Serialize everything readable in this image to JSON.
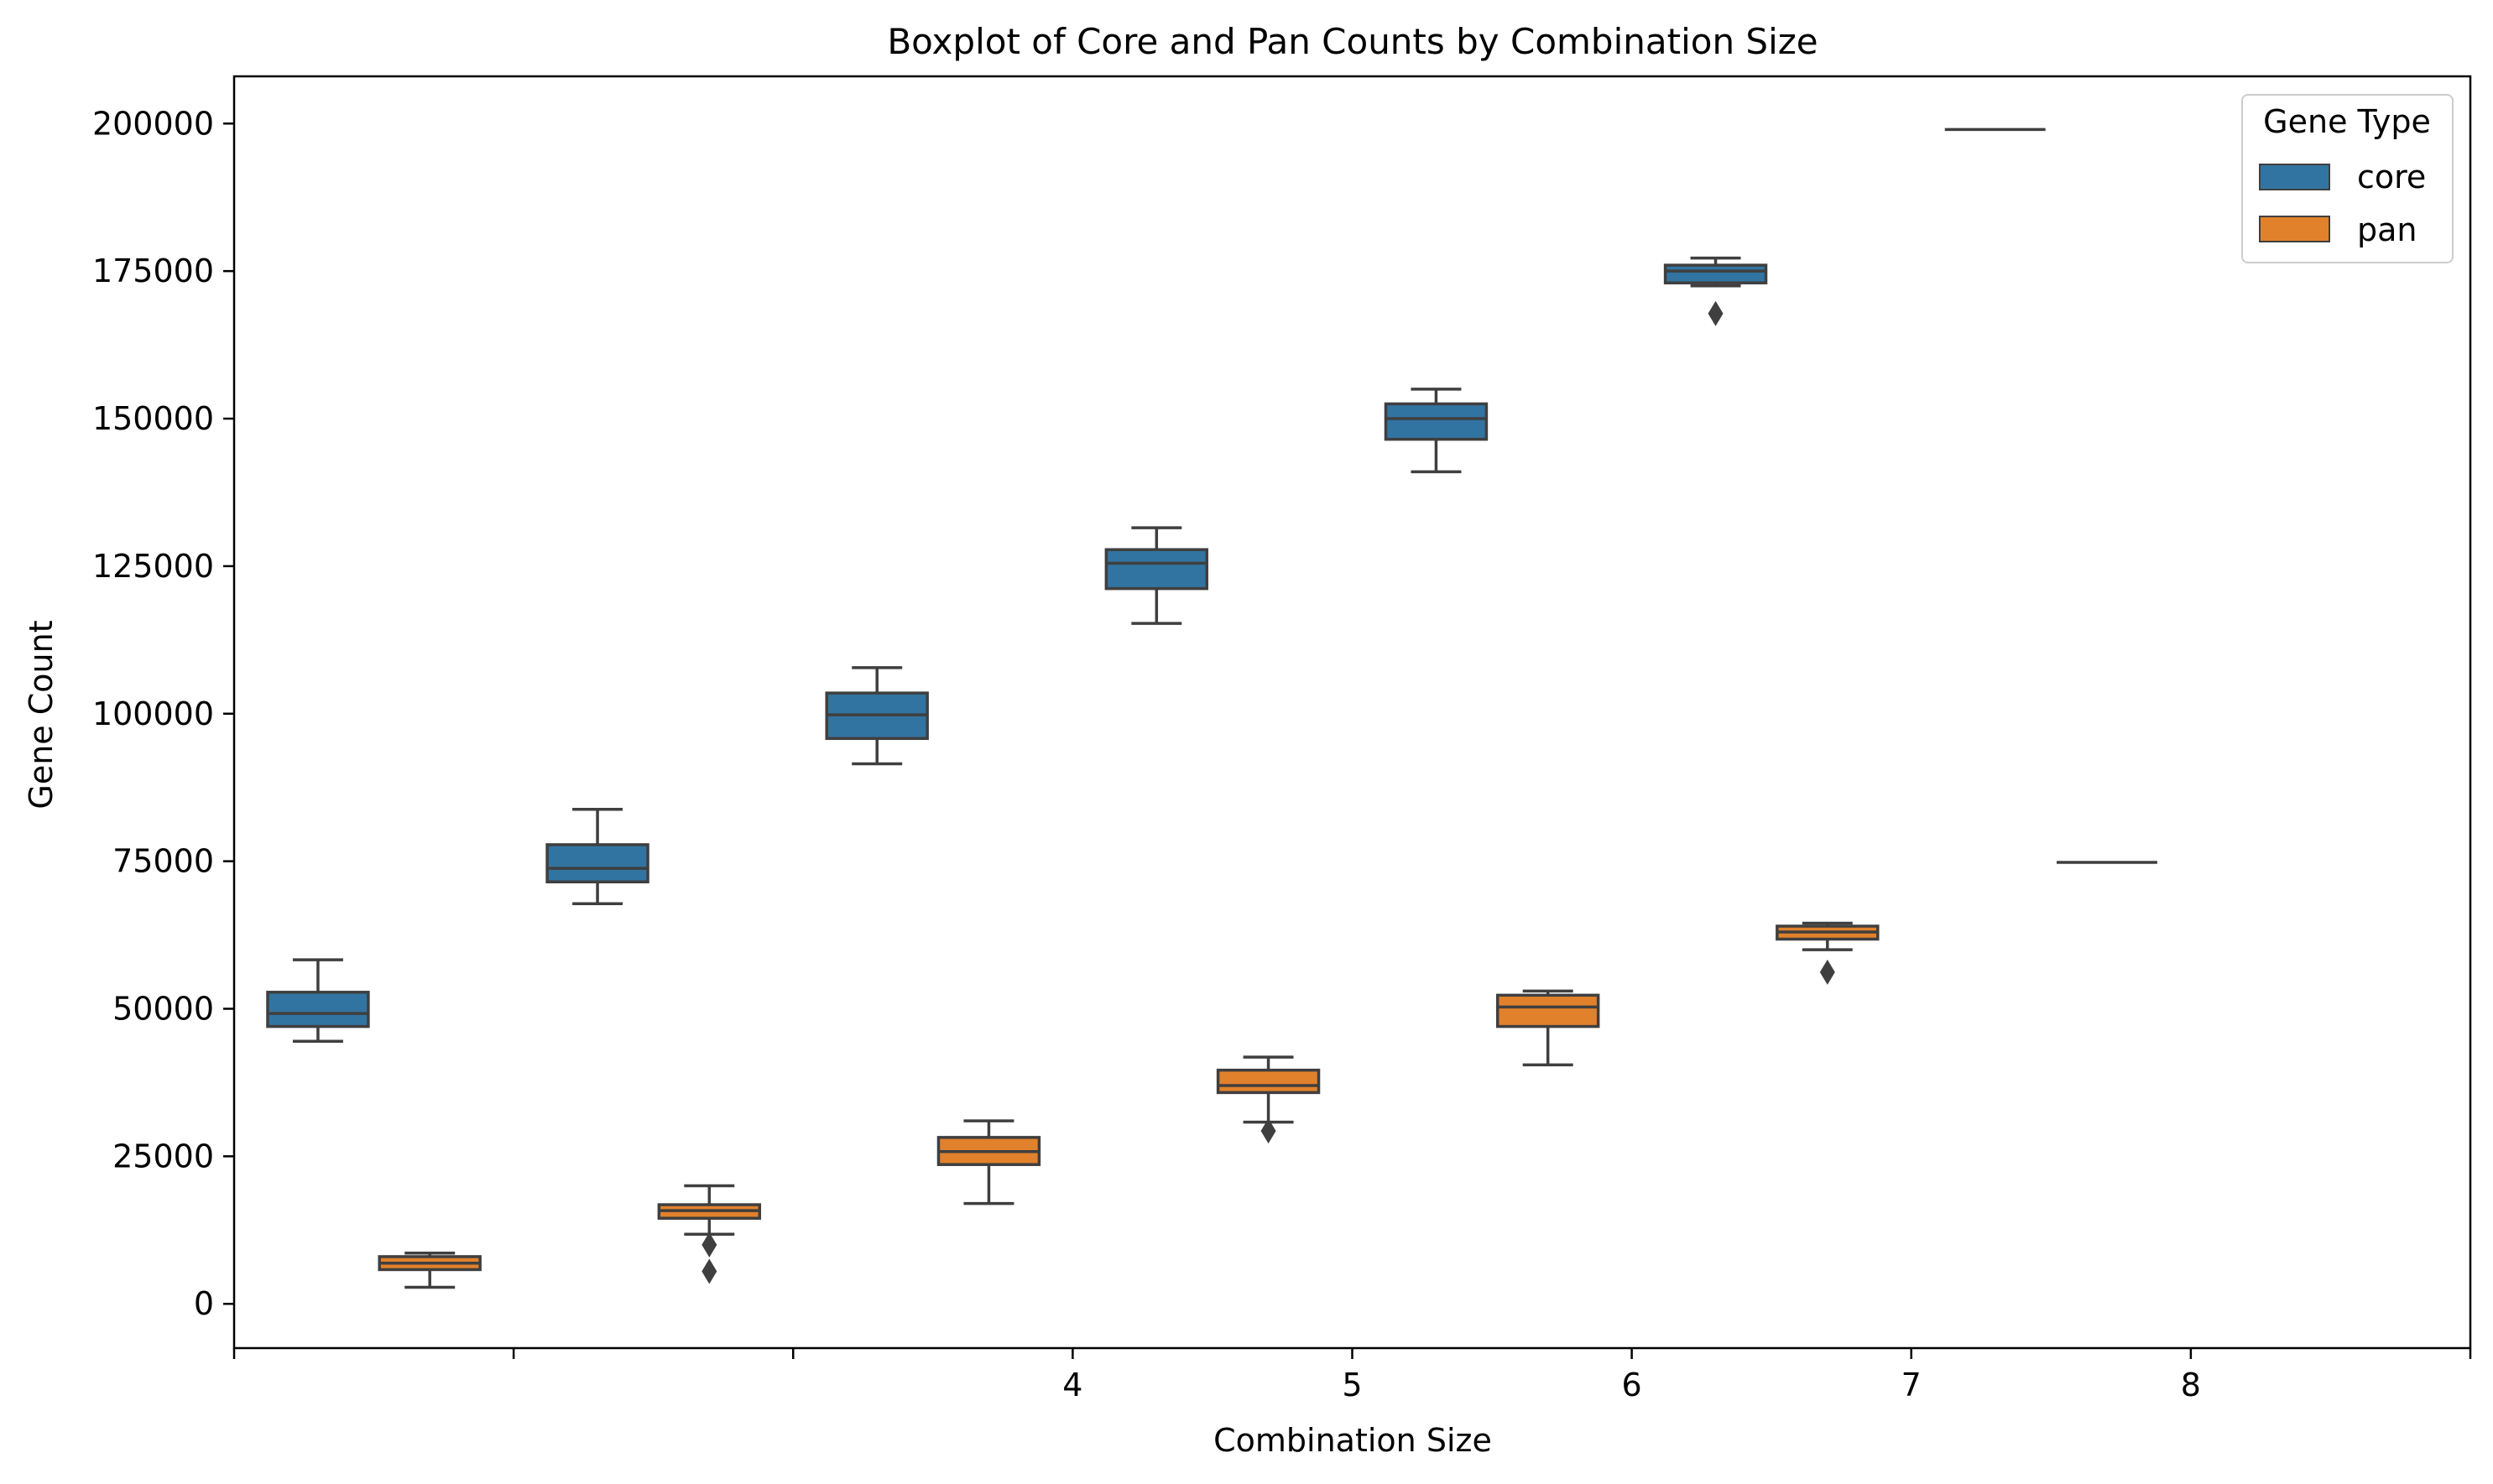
{
  "chart_data": {
    "type": "boxplot",
    "title": "Boxplot of Core and Pan Counts by Combination Size",
    "xlabel": "Combination Size",
    "ylabel": "Gene Count",
    "ylim": [
      -7500,
      208000
    ],
    "y_ticks": [
      0,
      25000,
      50000,
      75000,
      100000,
      125000,
      150000,
      175000,
      200000
    ],
    "y_tick_labels": [
      "0",
      "25000",
      "50000",
      "75000",
      "100000",
      "125000",
      "150000",
      "175000",
      "200000"
    ],
    "x_tick_labels": [
      "",
      "",
      "",
      "4",
      "5",
      "6",
      "7",
      "8",
      ""
    ],
    "legend": {
      "title": "Gene Type",
      "placement": "top-right",
      "entries": [
        {
          "label": "core",
          "color": "#3274a1"
        },
        {
          "label": "pan",
          "color": "#e1812c"
        }
      ]
    },
    "box_edge_color": "#3f3f3f",
    "series": [
      {
        "name": "core",
        "color": "#3274a1",
        "boxes": [
          {
            "slot": 0,
            "whislo": 44500,
            "q1": 47000,
            "med": 49200,
            "q3": 52800,
            "whishi": 58300,
            "fliers": []
          },
          {
            "slot": 1,
            "whislo": 67800,
            "q1": 71500,
            "med": 73800,
            "q3": 77800,
            "whishi": 83800,
            "fliers": []
          },
          {
            "slot": 2,
            "whislo": 91500,
            "q1": 95800,
            "med": 99800,
            "q3": 103500,
            "whishi": 107800,
            "fliers": []
          },
          {
            "slot": 3,
            "whislo": 115300,
            "q1": 121200,
            "med": 125500,
            "q3": 127800,
            "whishi": 131500,
            "fliers": []
          },
          {
            "slot": 4,
            "whislo": 141000,
            "q1": 146500,
            "med": 150000,
            "q3": 152500,
            "whishi": 155000,
            "fliers": []
          },
          {
            "slot": 5,
            "whislo": 172500,
            "q1": 173000,
            "med": 175000,
            "q3": 176000,
            "whishi": 177200,
            "fliers": [
              167800
            ]
          },
          {
            "slot": 6,
            "whislo": 199000,
            "q1": 199000,
            "med": 199000,
            "q3": 199000,
            "whishi": 199000,
            "fliers": []
          }
        ]
      },
      {
        "name": "pan",
        "color": "#e1812c",
        "boxes": [
          {
            "slot": 0,
            "whislo": 2800,
            "q1": 5800,
            "med": 6900,
            "q3": 8000,
            "whishi": 8600,
            "fliers": []
          },
          {
            "slot": 1,
            "whislo": 11800,
            "q1": 14500,
            "med": 15800,
            "q3": 16800,
            "whishi": 20000,
            "fliers": [
              10000,
              5500
            ]
          },
          {
            "slot": 2,
            "whislo": 17000,
            "q1": 23600,
            "med": 25800,
            "q3": 28200,
            "whishi": 31000,
            "fliers": []
          },
          {
            "slot": 3,
            "whislo": 30800,
            "q1": 35800,
            "med": 37000,
            "q3": 39600,
            "whishi": 41800,
            "fliers": [
              29300
            ]
          },
          {
            "slot": 4,
            "whislo": 40500,
            "q1": 47000,
            "med": 50300,
            "q3": 52300,
            "whishi": 53000,
            "fliers": []
          },
          {
            "slot": 5,
            "whislo": 60000,
            "q1": 61800,
            "med": 63000,
            "q3": 64000,
            "whishi": 64500,
            "fliers": [
              56200
            ]
          },
          {
            "slot": 6,
            "whislo": 74800,
            "q1": 74800,
            "med": 74800,
            "q3": 74800,
            "whishi": 74800,
            "fliers": []
          }
        ]
      }
    ]
  }
}
